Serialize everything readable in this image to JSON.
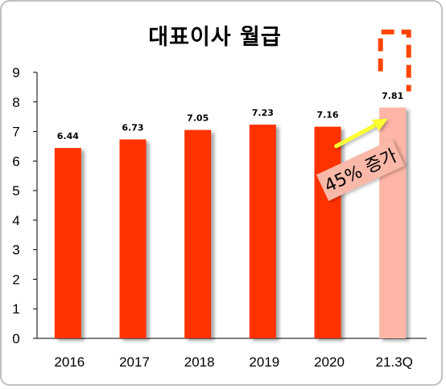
{
  "chart_data": {
    "type": "bar",
    "title": "대표이사 월급",
    "categories": [
      "2016",
      "2017",
      "2018",
      "2019",
      "2020",
      "21.3Q"
    ],
    "values": [
      6.44,
      6.73,
      7.05,
      7.23,
      7.16,
      7.81
    ],
    "data_labels": [
      "6.44",
      "6.73",
      "7.05",
      "7.23",
      "7.16",
      "7.81"
    ],
    "ylim": [
      0,
      9
    ],
    "yticks": [
      "0",
      "1",
      "2",
      "3",
      "4",
      "5",
      "6",
      "7",
      "8",
      "9"
    ],
    "xlabel": "",
    "ylabel": "",
    "grid": false,
    "legend": "none",
    "highlight_index": 5,
    "annotation": "45% 증가",
    "colors": {
      "bar": "#ff3300",
      "highlight_bar": "#ffb6a6",
      "dashed_box": "#ff4400",
      "arrow": "#ffff33",
      "annotation_box": "#f9b8a8",
      "axis": "#000000"
    }
  }
}
